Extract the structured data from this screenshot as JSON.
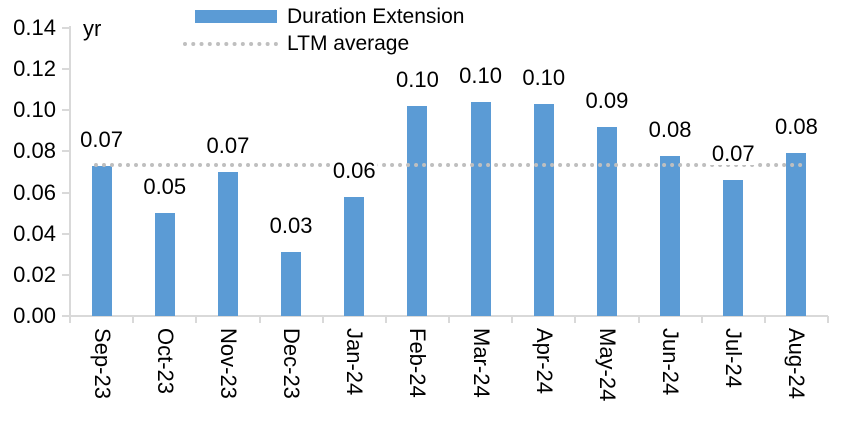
{
  "chart_data": {
    "type": "bar",
    "title": "",
    "unit_label": "yr",
    "categories": [
      "Sep-23",
      "Oct-23",
      "Nov-23",
      "Dec-23",
      "Jan-24",
      "Feb-24",
      "Mar-24",
      "Apr-24",
      "May-24",
      "Jun-24",
      "Jul-24",
      "Aug-24"
    ],
    "series": [
      {
        "name": "Duration Extension",
        "type": "bar",
        "color": "#5b9bd5",
        "values": [
          0.073,
          0.05,
          0.07,
          0.031,
          0.058,
          0.102,
          0.104,
          0.103,
          0.092,
          0.078,
          0.066,
          0.079
        ],
        "data_labels": [
          "0.07",
          "0.05",
          "0.07",
          "0.03",
          "0.06",
          "0.10",
          "0.10",
          "0.10",
          "0.09",
          "0.08",
          "0.07",
          "0.08"
        ]
      },
      {
        "name": "LTM average",
        "type": "dotted-line",
        "color": "#bfbfbf",
        "value": 0.0735
      }
    ],
    "ylim": [
      0,
      0.14
    ],
    "ytick_step": 0.02,
    "y_tick_labels": [
      "0.14",
      "0.12",
      "0.10",
      "0.08",
      "0.06",
      "0.04",
      "0.02",
      "0.00"
    ],
    "grid": false,
    "legend_position": "top",
    "axis_color": "#d9d9d9",
    "text_color": "#000000"
  }
}
